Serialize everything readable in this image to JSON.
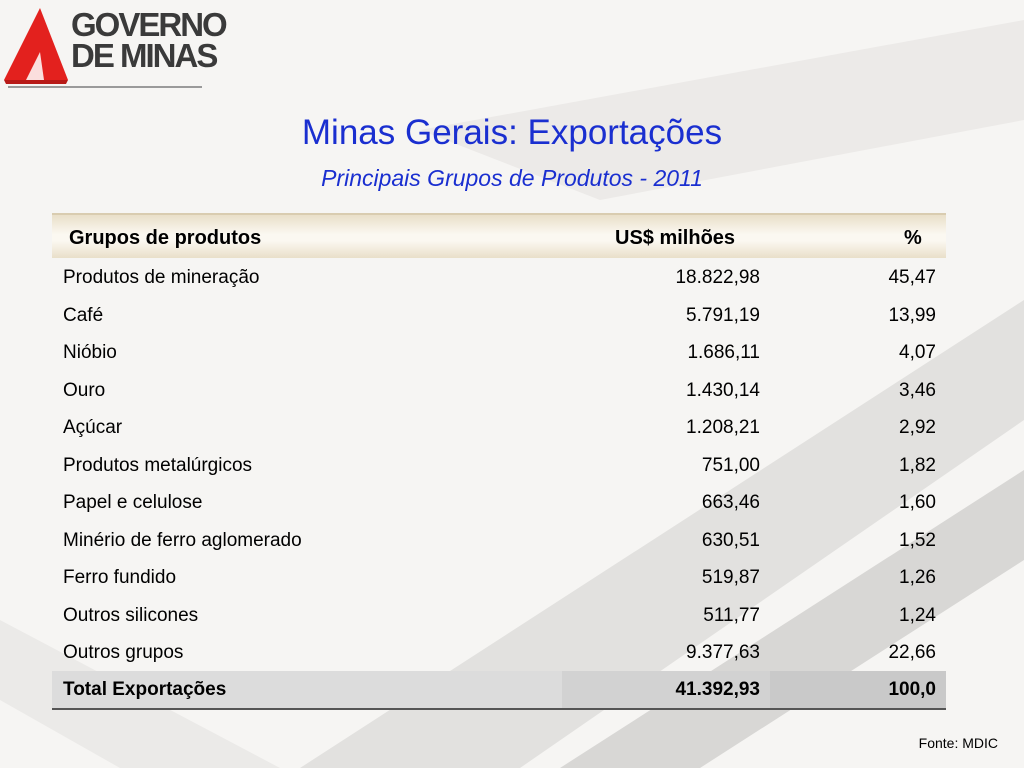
{
  "logo": {
    "line1": "GOVERNO",
    "line2": "DE MINAS"
  },
  "title": "Minas Gerais: Exportações",
  "subtitle": "Principais Grupos de Produtos - 2011",
  "table": {
    "headers": {
      "product": "Grupos de produtos",
      "value": "US$ milhões",
      "percent": "%"
    },
    "rows": [
      {
        "product": "Produtos de mineração",
        "value": "18.822,98",
        "percent": "45,47"
      },
      {
        "product": "Café",
        "value": "5.791,19",
        "percent": "13,99"
      },
      {
        "product": "Nióbio",
        "value": "1.686,11",
        "percent": "4,07"
      },
      {
        "product": "Ouro",
        "value": "1.430,14",
        "percent": "3,46"
      },
      {
        "product": "Açúcar",
        "value": "1.208,21",
        "percent": "2,92"
      },
      {
        "product": "Produtos metalúrgicos",
        "value": "751,00",
        "percent": "1,82"
      },
      {
        "product": "Papel e celulose",
        "value": "663,46",
        "percent": "1,60"
      },
      {
        "product": "Minério de ferro aglomerado",
        "value": "630,51",
        "percent": "1,52"
      },
      {
        "product": "Ferro fundido",
        "value": "519,87",
        "percent": "1,26"
      },
      {
        "product": "Outros silicones",
        "value": "511,77",
        "percent": "1,24"
      },
      {
        "product": "Outros grupos",
        "value": "9.377,63",
        "percent": "22,66"
      }
    ],
    "total": {
      "product": "Total Exportações",
      "value": "41.392,93",
      "percent": "100,0"
    }
  },
  "source": "Fonte: MDIC",
  "colors": {
    "title": "#1a2fd0",
    "logo_red": "#e3211e",
    "logo_text": "#3a3a3a"
  }
}
